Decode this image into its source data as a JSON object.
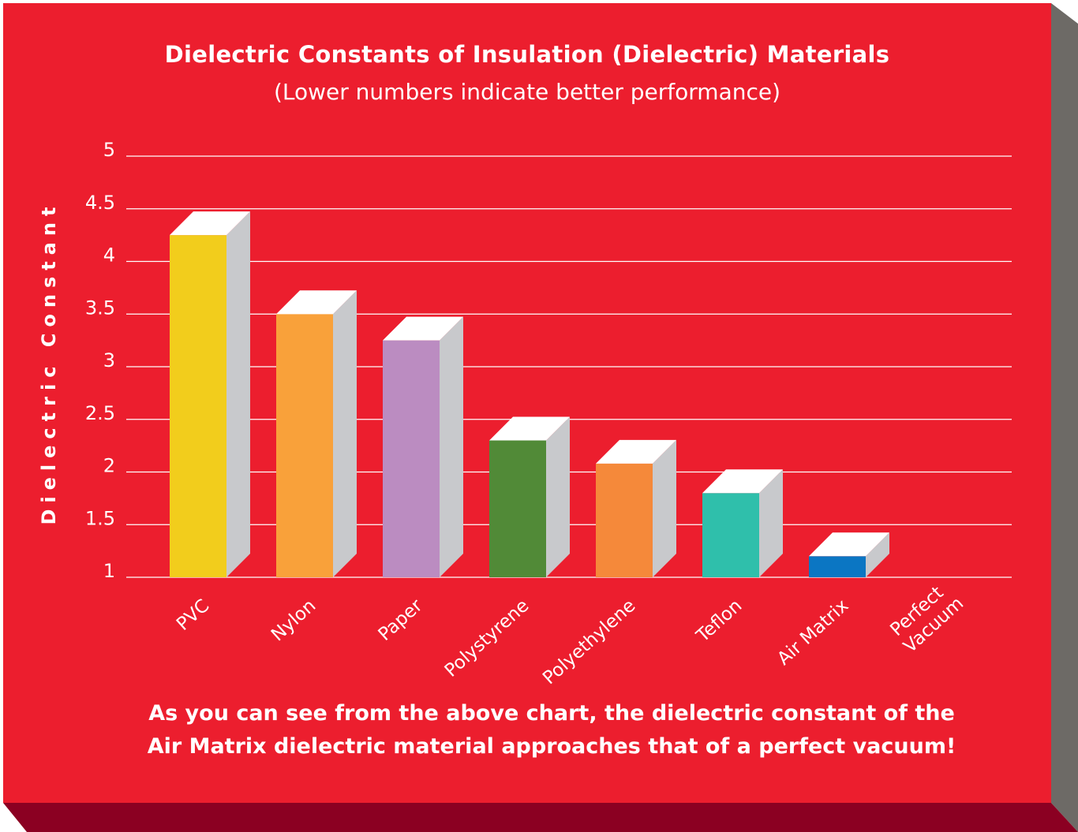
{
  "chart_data": {
    "type": "bar",
    "title": "Dielectric Constants of Insulation (Dielectric) Materials",
    "subtitle": "(Lower numbers indicate better performance)",
    "ylabel": "Dielectric Constant",
    "xlabel": "",
    "categories": [
      "PVC",
      "Nylon",
      "Paper",
      "Polystyrene",
      "Polyethylene",
      "Teflon",
      "Air Matrix",
      "Perfect Vacuum"
    ],
    "category_lines": [
      [
        "PVC"
      ],
      [
        "Nylon"
      ],
      [
        "Paper"
      ],
      [
        "Polystyrene"
      ],
      [
        "Polyethylene"
      ],
      [
        "Teflon"
      ],
      [
        "Air Matrix"
      ],
      [
        "Perfect",
        "Vacuum"
      ]
    ],
    "values": [
      4.25,
      3.5,
      3.25,
      2.3,
      2.08,
      1.8,
      1.2,
      1.0
    ],
    "bar_colors": [
      "#f2cd1c",
      "#f9a13a",
      "#bb8cc1",
      "#518a37",
      "#f5893a",
      "#2fbfab",
      "#0b76c3",
      "#ec1e2e"
    ],
    "yticks": [
      "5",
      "4.5",
      "4",
      "3.5",
      "3",
      "2.5",
      "2",
      "1.5",
      "1"
    ],
    "ylim": [
      1,
      5
    ],
    "grid": true,
    "legend": "none"
  },
  "note_lines": [
    "As you can see from the above chart, the dielectric constant of the",
    "Air Matrix dielectric material approaches that of a perfect vacuum!"
  ],
  "colors": {
    "background": "#ec1e2e",
    "side_shade": "#6d6a66",
    "bottom_shade": "#8b0022",
    "bar_top": "#ffffff",
    "bar_side": "#c8c9cc",
    "text": "#ffffff"
  }
}
